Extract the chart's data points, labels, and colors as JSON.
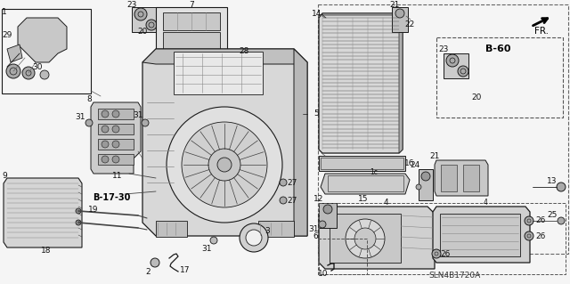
{
  "bg_color": "#f5f5f5",
  "fig_width": 6.4,
  "fig_height": 3.19,
  "dpi": 100,
  "diagram_code": "SLN4B1720A",
  "fr_label": "FR.",
  "b60_label": "B-60",
  "b1730_label": "B-17-30",
  "line_color": "#1a1a1a",
  "gray_fill": "#d0d0d0",
  "med_gray": "#888888",
  "dark_gray": "#444444"
}
